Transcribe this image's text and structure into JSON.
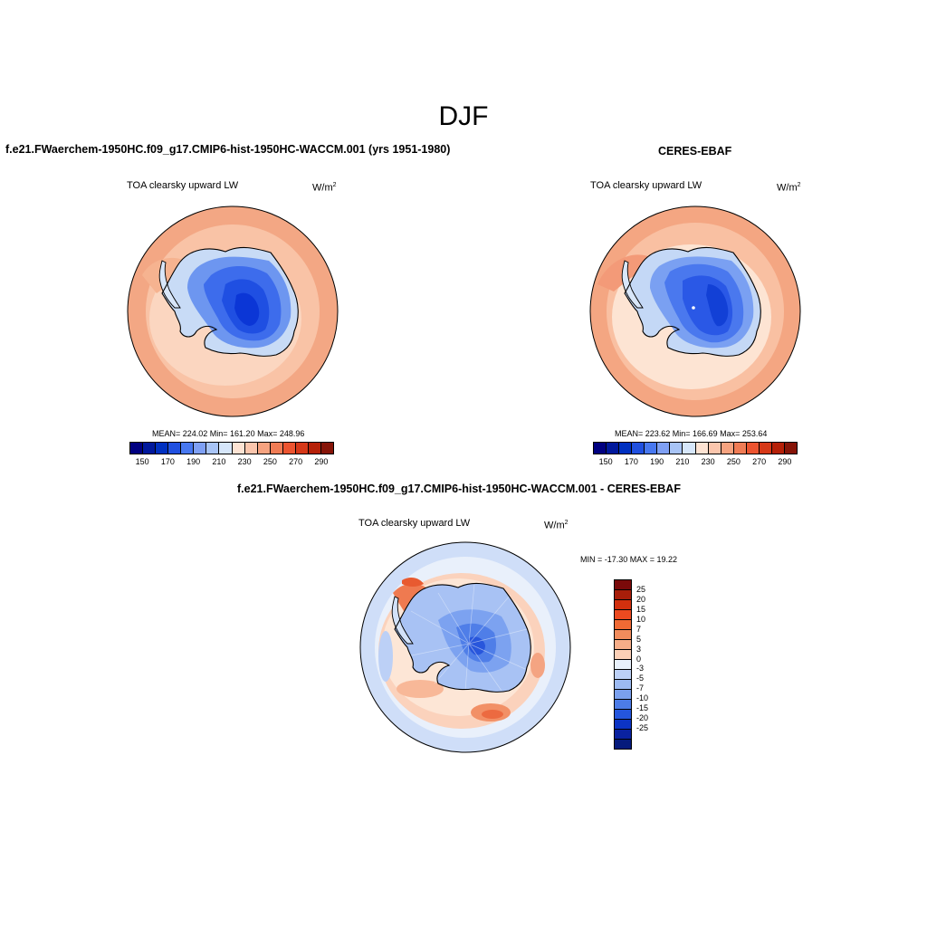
{
  "figure_title": "DJF",
  "panels": {
    "model": {
      "title": "f.e21.FWaerchem-1950HC.f09_g17.CMIP6-hist-1950HC-WACCM.001 (yrs 1951-1980)",
      "variable": "TOA clearsky upward LW",
      "units": "W/m",
      "units_sup": "2",
      "stats": "MEAN= 224.02  Min= 161.20  Max= 248.96"
    },
    "obs": {
      "title": "CERES-EBAF",
      "variable": "TOA clearsky upward LW",
      "units": "W/m",
      "units_sup": "2",
      "stats": "MEAN= 223.62  Min= 166.69  Max= 253.64"
    },
    "diff": {
      "title": "f.e21.FWaerchem-1950HC.f09_g17.CMIP6-hist-1950HC-WACCM.001 - CERES-EBAF",
      "variable": "TOA clearsky upward LW",
      "units": "W/m",
      "units_sup": "2",
      "stats": "MIN = -17.30 MAX =  19.22"
    }
  },
  "abs_colorbar": {
    "colors": [
      "#000080",
      "#00189c",
      "#0030c0",
      "#2050e0",
      "#4878f0",
      "#7fa0f4",
      "#a8c4f6",
      "#d6e6fa",
      "#fde3d3",
      "#fbc6ad",
      "#f6a380",
      "#f07c55",
      "#ec5430",
      "#d63818",
      "#b52008",
      "#861408"
    ],
    "tick_labels": [
      "150",
      "170",
      "190",
      "210",
      "230",
      "250",
      "270",
      "290"
    ]
  },
  "diff_colorbar": {
    "colors": [
      "#7a0a0a",
      "#a81e0a",
      "#d2300e",
      "#ec4a20",
      "#f06a34",
      "#f28c5c",
      "#f6ad88",
      "#fbcfb6",
      "#e8f0fb",
      "#bcd0f6",
      "#9cbaf2",
      "#7aa0ee",
      "#4c7ce8",
      "#2456de",
      "#0c34c4",
      "#0a22a0",
      "#061a7c"
    ],
    "tick_labels": [
      "25",
      "20",
      "15",
      "10",
      "7",
      "5",
      "3",
      "0",
      "-3",
      "-5",
      "-7",
      "-10",
      "-15",
      "-20",
      "-25"
    ]
  }
}
